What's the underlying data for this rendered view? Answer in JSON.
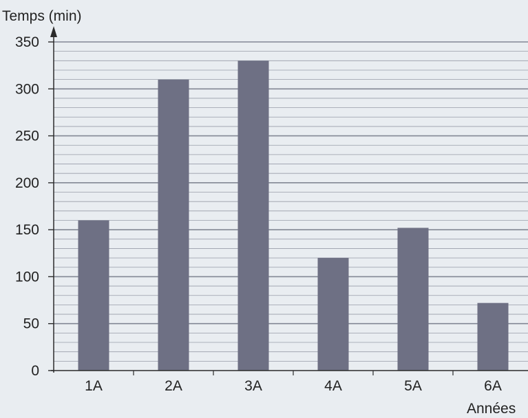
{
  "chart_data": {
    "type": "bar",
    "ylabel": "Temps (min)",
    "xlabel": "Années",
    "categories": [
      "1A",
      "2A",
      "3A",
      "4A",
      "5A",
      "6A"
    ],
    "values": [
      160,
      310,
      330,
      120,
      152,
      72
    ],
    "ylim": [
      0,
      350
    ],
    "yticks": [
      "0",
      "50",
      "100",
      "150",
      "200",
      "250",
      "300",
      "350"
    ],
    "grid": true,
    "bar_color": "#6e7084",
    "grid_color": "#7d8290",
    "axis_color": "#2a2a2a",
    "background_color": "#e9edf1"
  }
}
